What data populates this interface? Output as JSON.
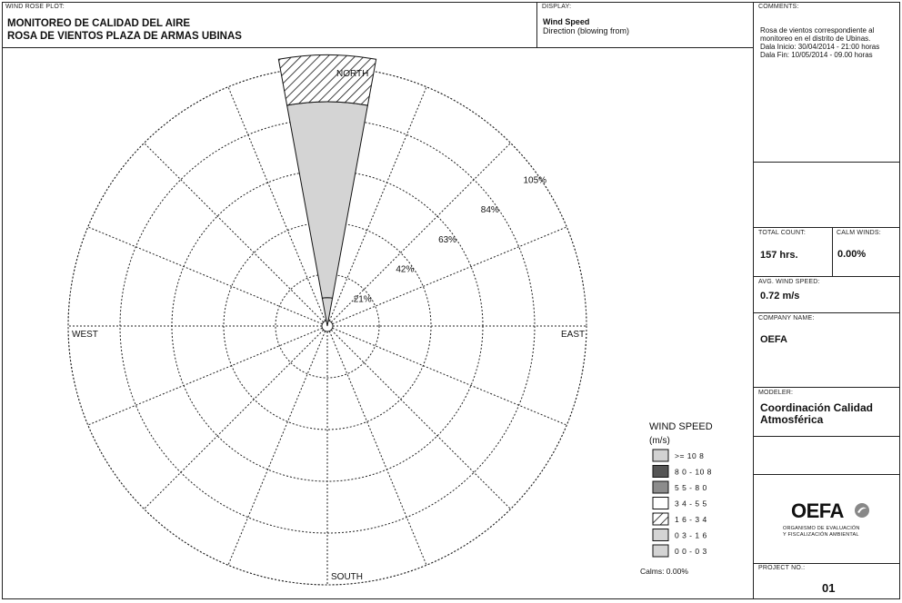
{
  "header": {
    "wind_rose_plot_label": "WIND ROSE PLOT:",
    "title_line1": "MONITOREO DE CALIDAD DEL AIRE",
    "title_line2": "ROSA DE VIENTOS PLAZA DE ARMAS UBINAS",
    "display_label": "DISPLAY:",
    "display_line1": "Wind Speed",
    "display_line2": "Direction (blowing from)"
  },
  "side_panel": {
    "comments_label": "COMMENTS:",
    "comments_lines": [
      "Rosa de vientos correspondiente al",
      "monitoreo en el distrito de Ubinas.",
      "Dala Inicio: 30/04/2014 - 21:00 horas",
      "Dala Fin: 10/05/2014 - 09.00 horas"
    ],
    "total_count_label": "TOTAL COUNT:",
    "total_count_value": "157 hrs.",
    "calm_winds_label": "CALM WINDS:",
    "calm_winds_value": "0.00%",
    "avg_wind_label": "AVG. WIND SPEED:",
    "avg_wind_value": "0.72 m/s",
    "company_label": "COMPANY NAME:",
    "company_value": "OEFA",
    "modeler_label": "MODELER:",
    "modeler_line1": "Coordinación Calidad",
    "modeler_line2": "Atmosférica",
    "logo_text": "OEFA",
    "logo_sub1": "ORGANISMO DE EVALUACIÓN",
    "logo_sub2": "Y FISCALIZACIÓN AMBIENTAL",
    "project_label": "PROJECT NO.:",
    "project_value": "01"
  },
  "chart_data": {
    "type": "wind-rose",
    "direction_labels": {
      "north": "NORTH",
      "south": "SOUTH",
      "east": "EAST",
      "west": "WEST"
    },
    "sectors": 16,
    "ring_values": [
      21,
      42,
      63,
      84,
      105
    ],
    "ring_labels": [
      "21%",
      "42%",
      "63%",
      "84%",
      "105%"
    ],
    "r_max": 105,
    "petals": [
      {
        "direction": "N",
        "segments": [
          {
            "bin": "00 - 03",
            "from": 0,
            "to": 11.5
          },
          {
            "bin": "03 - 16",
            "from": 11.5,
            "to": 91
          },
          {
            "bin": "16 - 34",
            "from": 91,
            "to": 110
          }
        ]
      }
    ],
    "legend": {
      "title_line1": "WIND SPEED",
      "title_line2": "(m/s)",
      "items": [
        {
          "label": ">= 10 8",
          "fill": "#d2d2d2"
        },
        {
          "label": "8 0 - 10 8",
          "fill": "#555555"
        },
        {
          "label": "5 5 - 8 0",
          "fill": "#8c8c8c"
        },
        {
          "label": "3 4 - 5 5",
          "fill": "#ffffff"
        },
        {
          "label": "1 6 - 3 4",
          "fill": "hatch"
        },
        {
          "label": "0 3 - 1 6",
          "fill": "#d4d4d4"
        },
        {
          "label": "0 0 - 0 3",
          "fill": "#d4d4d4"
        }
      ],
      "calms": "Calms: 0.00%"
    }
  }
}
